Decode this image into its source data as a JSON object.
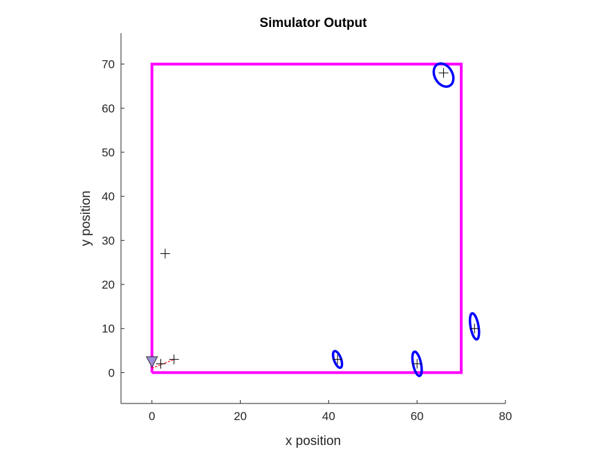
{
  "chart_data": {
    "type": "scatter",
    "title": "Simulator Output",
    "xlabel": "x position",
    "ylabel": "y position",
    "xlim": [
      -7,
      80
    ],
    "ylim": [
      -7,
      77
    ],
    "xticks": [
      0,
      20,
      40,
      60,
      80
    ],
    "yticks": [
      0,
      10,
      20,
      30,
      40,
      50,
      60,
      70
    ],
    "grid": false,
    "path": {
      "name": "boundary",
      "color": "#ff00ff",
      "points": [
        [
          0,
          0
        ],
        [
          70,
          0
        ],
        [
          70,
          70
        ],
        [
          0,
          70
        ],
        [
          0,
          0
        ]
      ]
    },
    "markers": {
      "color": "#000000",
      "symbol": "+",
      "points": [
        [
          3,
          27
        ],
        [
          5,
          3
        ],
        [
          2,
          2
        ],
        [
          42,
          3
        ],
        [
          60,
          2
        ],
        [
          73,
          10
        ],
        [
          66,
          68
        ]
      ]
    },
    "ellipses": {
      "color": "#0000ff",
      "items": [
        {
          "cx": 66,
          "cy": 67.5,
          "rx": 2.0,
          "ry": 2.8,
          "angle": 30
        },
        {
          "cx": 42,
          "cy": 3,
          "rx": 0.8,
          "ry": 2.0,
          "angle": 20
        },
        {
          "cx": 60,
          "cy": 2,
          "rx": 0.9,
          "ry": 2.8,
          "angle": 12
        },
        {
          "cx": 73,
          "cy": 10.5,
          "rx": 0.9,
          "ry": 3.0,
          "angle": 10
        }
      ]
    },
    "robot": {
      "position": [
        0,
        2.5
      ],
      "color": "#9b8cd6"
    },
    "trajectory": {
      "color": "#ff0000",
      "points": [
        [
          0,
          1
        ],
        [
          2,
          1.8
        ],
        [
          5,
          3
        ]
      ]
    }
  }
}
